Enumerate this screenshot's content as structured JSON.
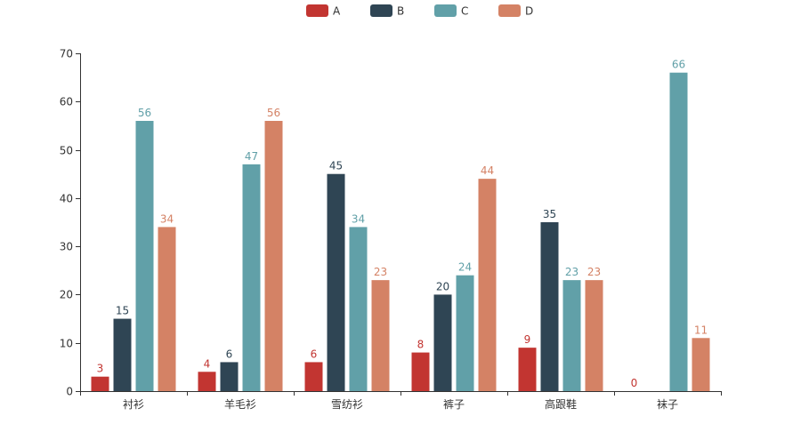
{
  "chart_data": {
    "type": "bar",
    "title": "",
    "xlabel": "",
    "ylabel": "",
    "categories": [
      "衬衫",
      "羊毛衫",
      "雪纺衫",
      "裤子",
      "高跟鞋",
      "袜子"
    ],
    "series": [
      {
        "name": "A",
        "color": "#c23531",
        "values": [
          3,
          4,
          6,
          8,
          9,
          0
        ]
      },
      {
        "name": "B",
        "color": "#2f4554",
        "values": [
          15,
          6,
          45,
          20,
          35,
          0
        ]
      },
      {
        "name": "C",
        "color": "#61a0a8",
        "values": [
          56,
          47,
          34,
          24,
          23,
          66
        ]
      },
      {
        "name": "D",
        "color": "#d48265",
        "values": [
          34,
          56,
          23,
          44,
          23,
          11
        ]
      }
    ],
    "ylim": [
      0,
      70
    ],
    "yticks": [
      0,
      10,
      20,
      30,
      40,
      50,
      60,
      70
    ],
    "legend_position": "top-center",
    "grid": false,
    "data_labels": [
      [
        "3",
        "15",
        "56",
        "34"
      ],
      [
        "4",
        "6",
        "47",
        "56"
      ],
      [
        "6",
        "45",
        "34",
        "23"
      ],
      [
        "8",
        "20",
        "24",
        "44"
      ],
      [
        "9",
        "35",
        "23",
        "23"
      ],
      [
        "0",
        "",
        "66",
        "11"
      ]
    ]
  }
}
